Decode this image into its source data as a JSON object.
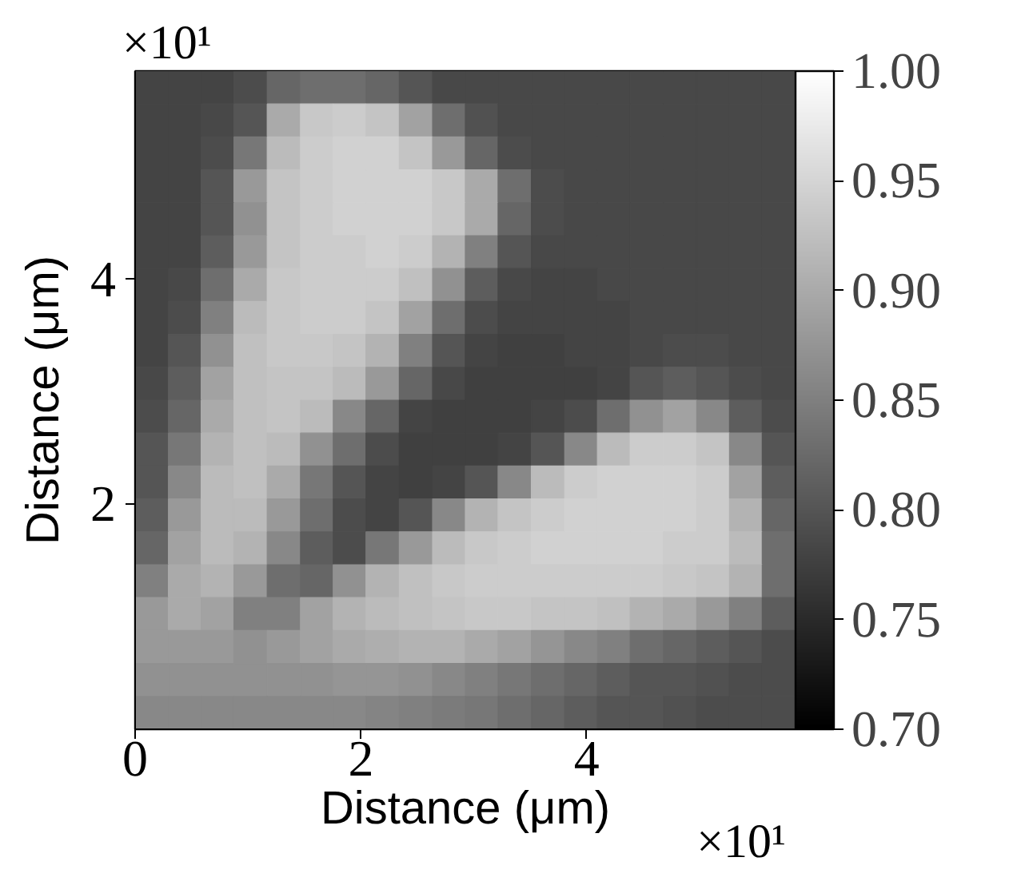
{
  "chart_data": {
    "type": "heatmap",
    "xlabel": "Distance (μm)",
    "ylabel": "Distance (μm)",
    "x": [
      0.15,
      0.44,
      0.73,
      1.02,
      1.32,
      1.61,
      1.9,
      2.19,
      2.49,
      2.78,
      3.07,
      3.36,
      3.66,
      3.95,
      4.24,
      4.53,
      4.83,
      5.12,
      5.41,
      5.7
    ],
    "cells": [
      [
        0.78,
        0.78,
        0.78,
        0.79,
        0.82,
        0.83,
        0.83,
        0.82,
        0.8,
        0.785,
        0.785,
        0.785,
        0.785,
        0.785,
        0.785,
        0.785,
        0.785,
        0.785,
        0.785,
        0.785
      ],
      [
        0.78,
        0.78,
        0.785,
        0.8,
        0.9,
        0.935,
        0.94,
        0.93,
        0.89,
        0.83,
        0.795,
        0.785,
        0.785,
        0.785,
        0.785,
        0.785,
        0.785,
        0.785,
        0.785,
        0.785
      ],
      [
        0.78,
        0.78,
        0.79,
        0.84,
        0.92,
        0.94,
        0.945,
        0.945,
        0.93,
        0.88,
        0.82,
        0.79,
        0.785,
        0.785,
        0.785,
        0.785,
        0.785,
        0.785,
        0.785,
        0.785
      ],
      [
        0.78,
        0.78,
        0.8,
        0.88,
        0.93,
        0.94,
        0.945,
        0.945,
        0.945,
        0.935,
        0.9,
        0.83,
        0.79,
        0.785,
        0.785,
        0.785,
        0.785,
        0.785,
        0.785,
        0.785
      ],
      [
        0.78,
        0.78,
        0.8,
        0.87,
        0.93,
        0.94,
        0.945,
        0.945,
        0.945,
        0.935,
        0.9,
        0.82,
        0.79,
        0.785,
        0.785,
        0.785,
        0.785,
        0.785,
        0.785,
        0.785
      ],
      [
        0.78,
        0.78,
        0.81,
        0.88,
        0.93,
        0.94,
        0.94,
        0.945,
        0.94,
        0.91,
        0.85,
        0.8,
        0.785,
        0.785,
        0.785,
        0.785,
        0.785,
        0.785,
        0.785,
        0.785
      ],
      [
        0.78,
        0.785,
        0.83,
        0.9,
        0.935,
        0.94,
        0.94,
        0.94,
        0.925,
        0.87,
        0.81,
        0.785,
        0.78,
        0.78,
        0.785,
        0.785,
        0.785,
        0.785,
        0.785,
        0.785
      ],
      [
        0.78,
        0.79,
        0.85,
        0.92,
        0.935,
        0.94,
        0.94,
        0.93,
        0.89,
        0.83,
        0.79,
        0.78,
        0.78,
        0.78,
        0.78,
        0.785,
        0.785,
        0.785,
        0.785,
        0.785
      ],
      [
        0.78,
        0.8,
        0.87,
        0.925,
        0.935,
        0.935,
        0.93,
        0.91,
        0.85,
        0.8,
        0.78,
        0.775,
        0.775,
        0.78,
        0.78,
        0.785,
        0.79,
        0.79,
        0.785,
        0.785
      ],
      [
        0.785,
        0.81,
        0.89,
        0.925,
        0.93,
        0.93,
        0.92,
        0.88,
        0.82,
        0.785,
        0.775,
        0.775,
        0.775,
        0.775,
        0.78,
        0.8,
        0.81,
        0.8,
        0.79,
        0.785
      ],
      [
        0.79,
        0.82,
        0.9,
        0.925,
        0.93,
        0.92,
        0.86,
        0.82,
        0.78,
        0.775,
        0.775,
        0.775,
        0.78,
        0.79,
        0.83,
        0.87,
        0.89,
        0.86,
        0.81,
        0.79
      ],
      [
        0.8,
        0.84,
        0.91,
        0.925,
        0.92,
        0.87,
        0.83,
        0.79,
        0.775,
        0.775,
        0.775,
        0.78,
        0.8,
        0.86,
        0.92,
        0.94,
        0.94,
        0.93,
        0.86,
        0.8
      ],
      [
        0.8,
        0.86,
        0.92,
        0.925,
        0.9,
        0.84,
        0.8,
        0.78,
        0.775,
        0.78,
        0.8,
        0.86,
        0.92,
        0.94,
        0.945,
        0.945,
        0.945,
        0.94,
        0.89,
        0.81
      ],
      [
        0.81,
        0.88,
        0.92,
        0.92,
        0.88,
        0.83,
        0.79,
        0.78,
        0.8,
        0.86,
        0.91,
        0.93,
        0.94,
        0.945,
        0.945,
        0.945,
        0.945,
        0.94,
        0.91,
        0.82
      ],
      [
        0.82,
        0.89,
        0.92,
        0.91,
        0.86,
        0.81,
        0.79,
        0.84,
        0.88,
        0.92,
        0.935,
        0.94,
        0.945,
        0.945,
        0.945,
        0.945,
        0.94,
        0.94,
        0.92,
        0.83
      ],
      [
        0.85,
        0.9,
        0.91,
        0.88,
        0.83,
        0.82,
        0.87,
        0.91,
        0.925,
        0.935,
        0.94,
        0.94,
        0.94,
        0.94,
        0.94,
        0.94,
        0.935,
        0.93,
        0.91,
        0.83
      ],
      [
        0.88,
        0.9,
        0.89,
        0.85,
        0.85,
        0.89,
        0.91,
        0.92,
        0.925,
        0.93,
        0.935,
        0.935,
        0.93,
        0.93,
        0.925,
        0.91,
        0.9,
        0.88,
        0.85,
        0.81
      ],
      [
        0.88,
        0.88,
        0.88,
        0.87,
        0.88,
        0.89,
        0.9,
        0.905,
        0.91,
        0.91,
        0.9,
        0.89,
        0.875,
        0.86,
        0.85,
        0.83,
        0.82,
        0.81,
        0.8,
        0.79
      ],
      [
        0.87,
        0.87,
        0.87,
        0.87,
        0.87,
        0.87,
        0.875,
        0.875,
        0.87,
        0.86,
        0.85,
        0.84,
        0.83,
        0.82,
        0.81,
        0.8,
        0.8,
        0.795,
        0.79,
        0.79
      ],
      [
        0.86,
        0.86,
        0.86,
        0.86,
        0.86,
        0.86,
        0.86,
        0.855,
        0.85,
        0.845,
        0.84,
        0.83,
        0.82,
        0.81,
        0.8,
        0.8,
        0.795,
        0.79,
        0.79,
        0.79
      ]
    ],
    "xlim": [
      0,
      5.85
    ],
    "ylim": [
      0,
      5.85
    ],
    "xticks": [
      0,
      2,
      4
    ],
    "yticks": [
      2,
      4
    ],
    "clim": [
      0.7,
      1.0
    ],
    "cticks": [
      {
        "value": 0.7,
        "label": "0.70"
      },
      {
        "value": 0.75,
        "label": "0.75"
      },
      {
        "value": 0.8,
        "label": "0.80"
      },
      {
        "value": 0.85,
        "label": "0.85"
      },
      {
        "value": 0.9,
        "label": "0.90"
      },
      {
        "value": 0.95,
        "label": "0.95"
      },
      {
        "value": 1.0,
        "label": "1.00"
      }
    ],
    "annotations": [
      "×10¹",
      "×10¹"
    ]
  }
}
